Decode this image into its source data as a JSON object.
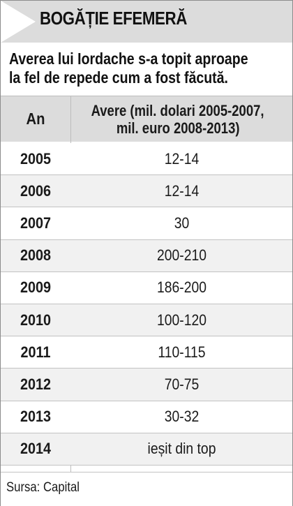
{
  "title": "BOGĂȚIE EFEMERĂ",
  "subtitle": [
    "Averea lui Iordache s-a topit aproape",
    "la fel de repede cum a fost făcută."
  ],
  "source": "Sursa: Capital",
  "chart_data": {
    "type": "table",
    "columns": [
      "An",
      "Avere (mil. dolari 2005-2007, mil. euro 2008-2013)"
    ],
    "header_lines": [
      "Avere (mil. dolari 2005-2007,",
      "mil. euro 2008-2013)"
    ],
    "rows": [
      {
        "year": "2005",
        "value": "12-14"
      },
      {
        "year": "2006",
        "value": "12-14"
      },
      {
        "year": "2007",
        "value": "30"
      },
      {
        "year": "2008",
        "value": "200-210"
      },
      {
        "year": "2009",
        "value": "186-200"
      },
      {
        "year": "2010",
        "value": "100-120"
      },
      {
        "year": "2011",
        "value": "110-115"
      },
      {
        "year": "2012",
        "value": "70-75"
      },
      {
        "year": "2013",
        "value": "30-32"
      },
      {
        "year": "2014",
        "value": "ieșit din top"
      }
    ]
  },
  "colors": {
    "header_bg": "#dcdcdc",
    "row_alt_bg": "#f1f1f1",
    "text": "#1a1a1a",
    "grid": "#c2c2c2"
  }
}
